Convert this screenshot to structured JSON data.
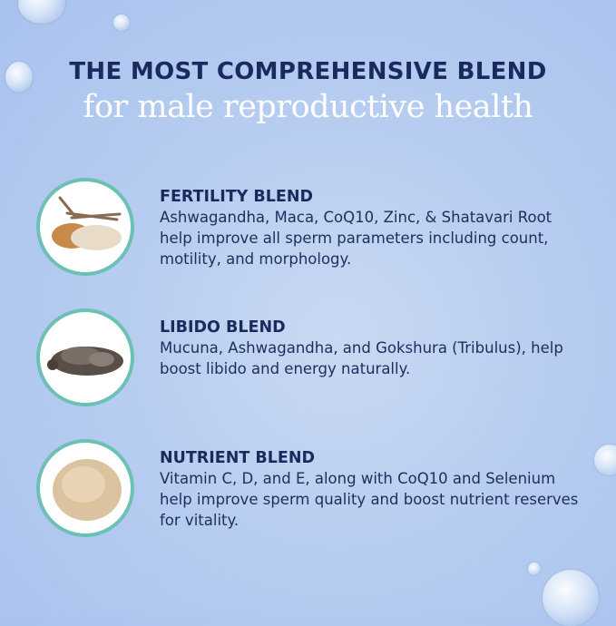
{
  "header": {
    "line1": "THE MOST COMPREHENSIVE BLEND",
    "line2": "for male reproductive health"
  },
  "blends": [
    {
      "title": "FERTILITY BLEND",
      "description": "Ashwagandha, Maca, CoQ10, Zinc, & Shatavari Root help improve all sperm parameters including count, motility, and morphology.",
      "image": "roots-and-powder"
    },
    {
      "title": "LIBIDO BLEND",
      "description": "Mucuna, Ashwagandha, and Gokshura (Tribulus), help boost libido and energy naturally.",
      "image": "seed-pods"
    },
    {
      "title": "NUTRIENT BLEND",
      "description": "Vitamin C, D, and E, along with CoQ10 and Selenium help improve sperm quality and boost nutrient reserves for vitality.",
      "image": "powder"
    }
  ],
  "colors": {
    "navy": "#1b2a5e",
    "ring": "#6cc0b4",
    "background": "#b7cdf0"
  }
}
